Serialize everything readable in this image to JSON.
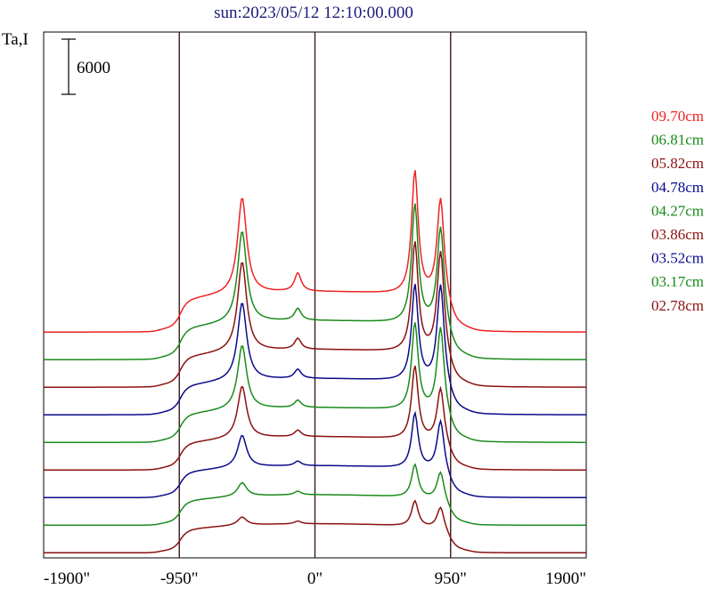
{
  "chart_data": {
    "type": "line",
    "title": "sun:2023/05/12 12:10:00.000",
    "ylabel": "Ta,I",
    "scale_bar_label": "6000",
    "scale_bar_value": 6000,
    "xlim": [
      -1900,
      1900
    ],
    "x_ticks": [
      {
        "value": -1900,
        "label": "-1900\""
      },
      {
        "value": -950,
        "label": "-950\""
      },
      {
        "value": 0,
        "label": "0\""
      },
      {
        "value": 950,
        "label": "950\""
      },
      {
        "value": 1900,
        "label": "1900\""
      }
    ],
    "vertical_lines": [
      -950,
      0,
      950
    ],
    "grid": false,
    "legend_position": "right",
    "series": [
      {
        "name": "09.70cm",
        "color": "#ee2222",
        "baseline": 26000,
        "peaks": [
          100,
          10500,
          2000,
          13500,
          11000
        ]
      },
      {
        "name": "06.81cm",
        "color": "#1a8a1a",
        "baseline": 23000,
        "peaks": [
          100,
          10000,
          1300,
          13000,
          11000
        ]
      },
      {
        "name": "05.82cm",
        "color": "#8b1010",
        "baseline": 20000,
        "peaks": [
          100,
          9800,
          1200,
          12000,
          11500
        ]
      },
      {
        "name": "04.78cm",
        "color": "#0a0a8a",
        "baseline": 17000,
        "peaks": [
          100,
          8500,
          1000,
          10500,
          11000
        ]
      },
      {
        "name": "04.27cm",
        "color": "#1a8a1a",
        "baseline": 14000,
        "peaks": [
          100,
          7000,
          800,
          9500,
          9500
        ]
      },
      {
        "name": "03.86cm",
        "color": "#8b1010",
        "baseline": 11000,
        "peaks": [
          100,
          5700,
          700,
          8000,
          6000
        ]
      },
      {
        "name": "03.52cm",
        "color": "#0a0a8a",
        "baseline": 8000,
        "peaks": [
          100,
          3500,
          500,
          6000,
          5600
        ]
      },
      {
        "name": "03.17cm",
        "color": "#1a8a1a",
        "baseline": 5000,
        "peaks": [
          100,
          1500,
          400,
          3600,
          3200
        ]
      },
      {
        "name": "02.78cm",
        "color": "#8b1010",
        "baseline": 2000,
        "peaks": [
          100,
          900,
          300,
          2800,
          2500
        ]
      }
    ]
  }
}
